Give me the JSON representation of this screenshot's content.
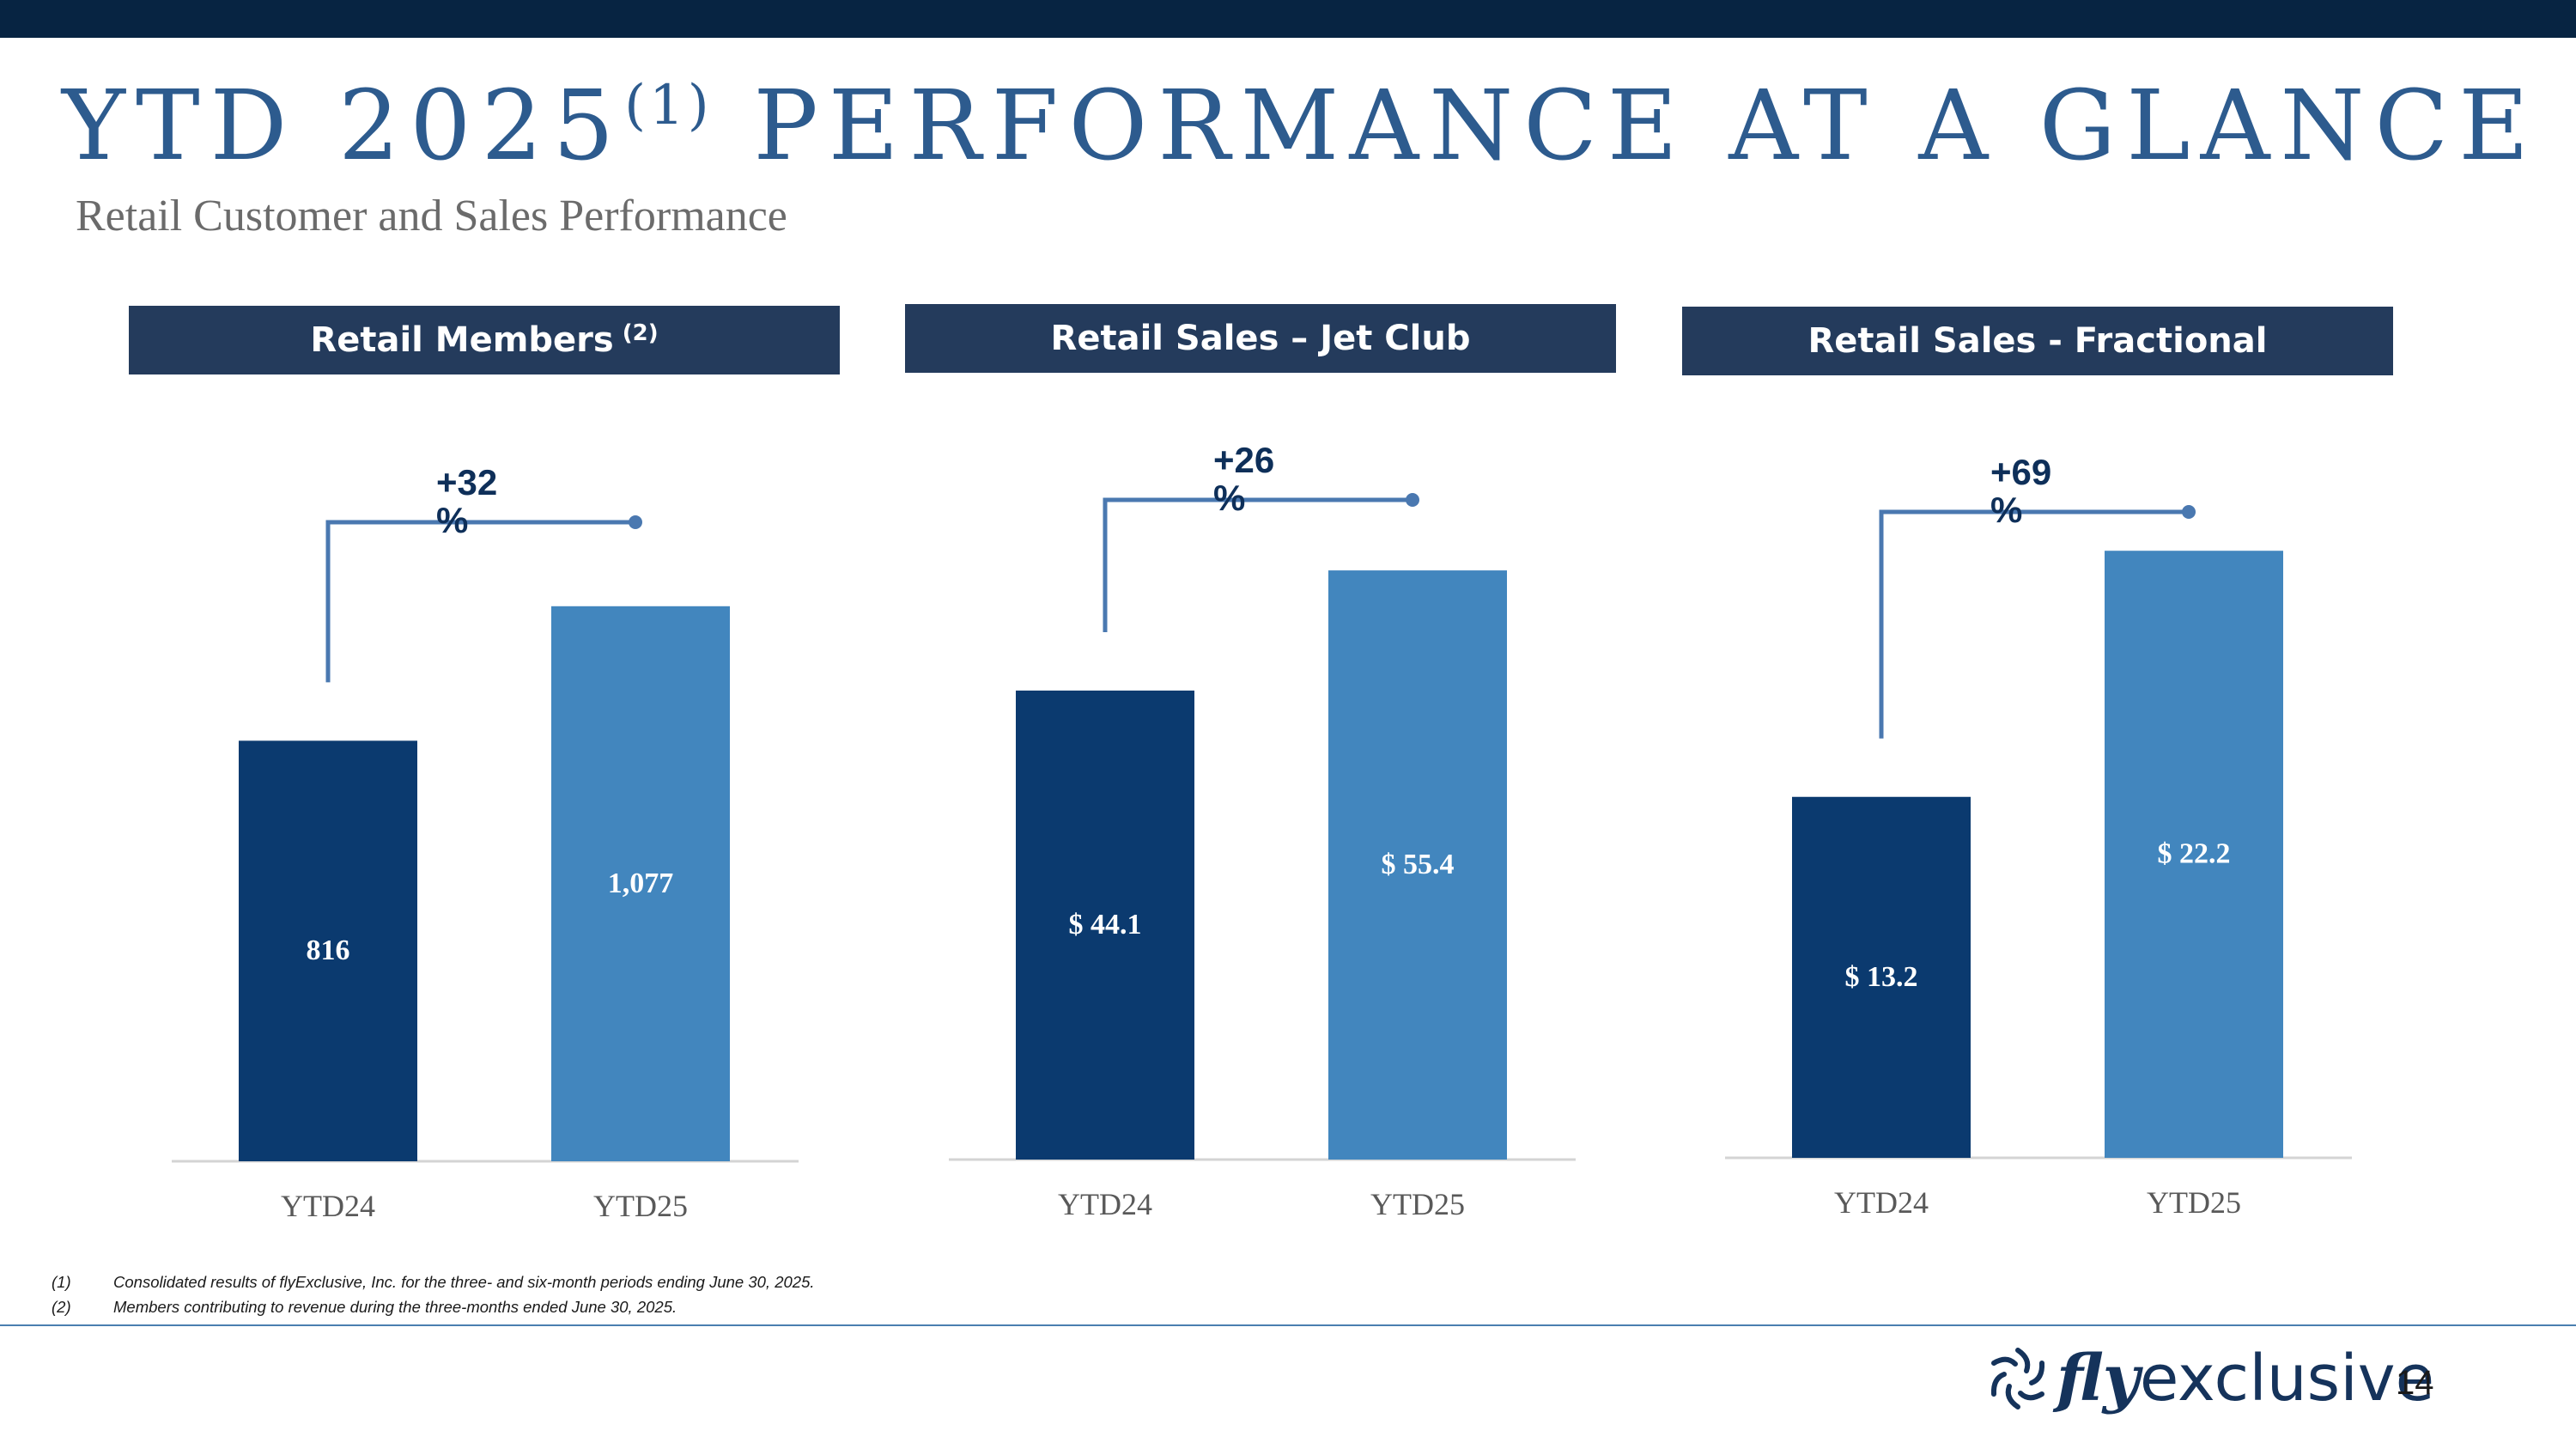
{
  "slide": {
    "title_main": "YTD 2025",
    "title_sup": "(1)",
    "title_rest": " PERFORMANCE AT A GLANCE",
    "subtitle": "Retail Customer and Sales Performance",
    "page_number": "14"
  },
  "panels": [
    {
      "header": "Retail Members",
      "header_sup": "(2)"
    },
    {
      "header": "Retail Sales – Jet Club",
      "header_sup": ""
    },
    {
      "header": "Retail Sales - Fractional",
      "header_sup": ""
    }
  ],
  "chart_data": [
    {
      "type": "bar",
      "title": "Retail Members (2)",
      "categories": [
        "YTD24",
        "YTD25"
      ],
      "values": [
        816,
        1077
      ],
      "labels": [
        "816",
        "1,077"
      ],
      "growth_label": "+32%",
      "ylim": [
        0,
        1300
      ],
      "colors": [
        "#0b3a6f",
        "#4286be"
      ]
    },
    {
      "type": "bar",
      "title": "Retail Sales – Jet Club",
      "categories": [
        "YTD24",
        "YTD25"
      ],
      "values": [
        44.1,
        55.4
      ],
      "labels": [
        "$ 44.1",
        "$ 55.4"
      ],
      "growth_label": "+26%",
      "ylim": [
        0,
        63
      ],
      "colors": [
        "#0b3a6f",
        "#4286be"
      ]
    },
    {
      "type": "bar",
      "title": "Retail Sales - Fractional",
      "categories": [
        "YTD24",
        "YTD25"
      ],
      "values": [
        13.2,
        22.2
      ],
      "labels": [
        "$ 13.2",
        "$ 22.2"
      ],
      "growth_label": "+69%",
      "ylim": [
        0,
        24.5
      ],
      "colors": [
        "#0b3a6f",
        "#4286be"
      ]
    }
  ],
  "footnotes": [
    {
      "num": "(1)",
      "text": "Consolidated results of flyExclusive, Inc. for the three- and six-month periods ending June 30, 2025."
    },
    {
      "num": "(2)",
      "text": "Members contributing to revenue during the three-months ended June 30, 2025."
    }
  ],
  "logo": {
    "fly": "fly",
    "rest": "exclusive",
    "icon": "turbine-icon"
  },
  "theme": {
    "navy": "#072442",
    "title_blue": "#2d5b8e",
    "bar_dark": "#0b3a6f",
    "bar_light": "#4286be",
    "bracket": "#4a78b0"
  }
}
